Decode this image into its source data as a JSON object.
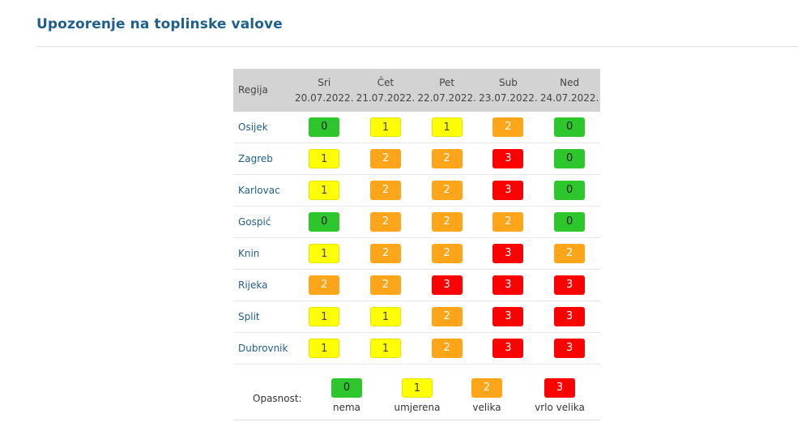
{
  "title": "Upozorenje na toplinske valove",
  "table": {
    "region_header": "Regija",
    "days": [
      {
        "name": "Sri",
        "date": "20.07.2022."
      },
      {
        "name": "Čet",
        "date": "21.07.2022."
      },
      {
        "name": "Pet",
        "date": "22.07.2022."
      },
      {
        "name": "Sub",
        "date": "23.07.2022."
      },
      {
        "name": "Ned",
        "date": "24.07.2022."
      }
    ],
    "rows": [
      {
        "region": "Osijek",
        "levels": [
          "0",
          "1",
          "1",
          "2",
          "0"
        ]
      },
      {
        "region": "Zagreb",
        "levels": [
          "1",
          "2",
          "2",
          "3",
          "0"
        ]
      },
      {
        "region": "Karlovac",
        "levels": [
          "1",
          "2",
          "2",
          "3",
          "0"
        ]
      },
      {
        "region": "Gospić",
        "levels": [
          "0",
          "2",
          "2",
          "2",
          "0"
        ]
      },
      {
        "region": "Knin",
        "levels": [
          "1",
          "2",
          "2",
          "3",
          "2"
        ]
      },
      {
        "region": "Rijeka",
        "levels": [
          "2",
          "2",
          "3",
          "3",
          "3"
        ]
      },
      {
        "region": "Split",
        "levels": [
          "1",
          "1",
          "2",
          "3",
          "3"
        ]
      },
      {
        "region": "Dubrovnik",
        "levels": [
          "1",
          "1",
          "2",
          "3",
          "3"
        ]
      }
    ]
  },
  "legend": {
    "label": "Opasnost:",
    "items": [
      {
        "value": "0",
        "text": "nema"
      },
      {
        "value": "1",
        "text": "umjerena"
      },
      {
        "value": "2",
        "text": "velika"
      },
      {
        "value": "3",
        "text": "vrlo velika"
      }
    ]
  },
  "colors": {
    "level_0": "#2dc72d",
    "level_1": "#ffff00",
    "level_2": "#ffa519",
    "level_3": "#ff0000",
    "title": "#1f5f8b"
  }
}
